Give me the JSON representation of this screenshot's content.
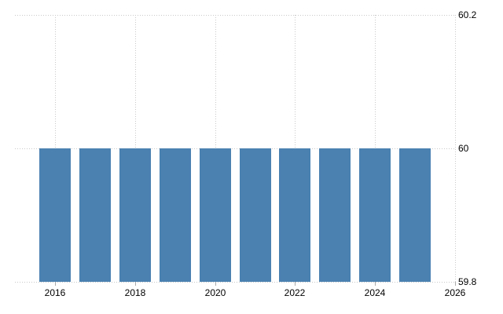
{
  "chart_data": {
    "type": "bar",
    "title": "",
    "xlabel": "",
    "ylabel": "",
    "categories": [
      "2016",
      "2017",
      "2018",
      "2019",
      "2020",
      "2021",
      "2022",
      "2023",
      "2024",
      "2025"
    ],
    "values": [
      60,
      60,
      60,
      60,
      60,
      60,
      60,
      60,
      60,
      60
    ],
    "ylim": [
      59.8,
      60.2
    ],
    "y_ticks": [
      60.2,
      60,
      59.8
    ],
    "y_tick_labels": [
      "60.2",
      "60",
      "59.8"
    ],
    "y_axis_side": "right",
    "x_ticks": [
      2016,
      2018,
      2020,
      2022,
      2024,
      2026
    ],
    "x_tick_labels": [
      "2016",
      "2018",
      "2020",
      "2022",
      "2024",
      "2026"
    ],
    "grid": "dotted",
    "legend": "none",
    "colors": {
      "bar": "#4a81b1",
      "grid": "#c9c9c9",
      "tick": "#aaaaaa",
      "text": "#000000",
      "background": "#ffffff"
    }
  }
}
